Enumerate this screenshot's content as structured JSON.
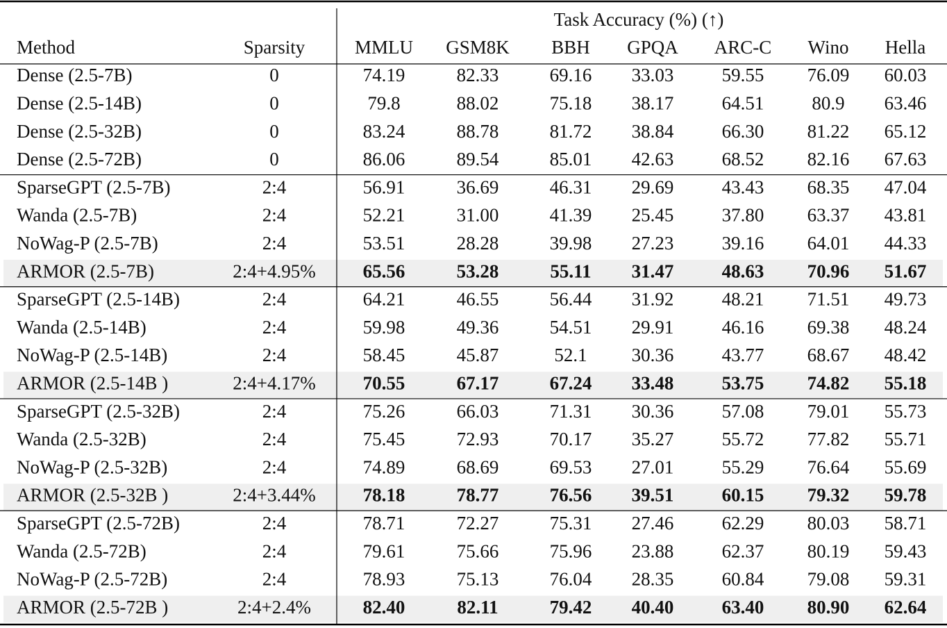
{
  "table": {
    "group_header": "Task Accuracy (%) (↑)",
    "columns": [
      "Method",
      "Sparsity",
      "MMLU",
      "GSM8K",
      "BBH",
      "GPQA",
      "ARC-C",
      "Wino",
      "Hella"
    ],
    "groups": [
      {
        "rows": [
          [
            "Dense (2.5-7B)",
            "0",
            "74.19",
            "82.33",
            "69.16",
            "33.03",
            "59.55",
            "76.09",
            "60.03"
          ],
          [
            "Dense (2.5-14B)",
            "0",
            "79.8",
            "88.02",
            "75.18",
            "38.17",
            "64.51",
            "80.9",
            "63.46"
          ],
          [
            "Dense (2.5-32B)",
            "0",
            "83.24",
            "88.78",
            "81.72",
            "38.84",
            "66.30",
            "81.22",
            "65.12"
          ],
          [
            "Dense (2.5-72B)",
            "0",
            "86.06",
            "89.54",
            "85.01",
            "42.63",
            "68.52",
            "82.16",
            "67.63"
          ]
        ]
      },
      {
        "rows": [
          [
            "SparseGPT (2.5-7B)",
            "2:4",
            "56.91",
            "36.69",
            "46.31",
            "29.69",
            "43.43",
            "68.35",
            "47.04"
          ],
          [
            "Wanda (2.5-7B)",
            "2:4",
            "52.21",
            "31.00",
            "41.39",
            "25.45",
            "37.80",
            "63.37",
            "43.81"
          ],
          [
            "NoWag-P (2.5-7B)",
            "2:4",
            "53.51",
            "28.28",
            "39.98",
            "27.23",
            "39.16",
            "64.01",
            "44.33"
          ],
          [
            "ARMOR (2.5-7B)",
            "2:4+4.95%",
            "65.56",
            "53.28",
            "55.11",
            "31.47",
            "48.63",
            "70.96",
            "51.67"
          ]
        ]
      },
      {
        "rows": [
          [
            "SparseGPT (2.5-14B)",
            "2:4",
            "64.21",
            "46.55",
            "56.44",
            "31.92",
            "48.21",
            "71.51",
            "49.73"
          ],
          [
            "Wanda (2.5-14B)",
            "2:4",
            "59.98",
            "49.36",
            "54.51",
            "29.91",
            "46.16",
            "69.38",
            "48.24"
          ],
          [
            "NoWag-P (2.5-14B)",
            "2:4",
            "58.45",
            "45.87",
            "52.1",
            "30.36",
            "43.77",
            "68.67",
            "48.42"
          ],
          [
            "ARMOR (2.5-14B )",
            "2:4+4.17%",
            "70.55",
            "67.17",
            "67.24",
            "33.48",
            "53.75",
            "74.82",
            "55.18"
          ]
        ]
      },
      {
        "rows": [
          [
            "SparseGPT (2.5-32B)",
            "2:4",
            "75.26",
            "66.03",
            "71.31",
            "30.36",
            "57.08",
            "79.01",
            "55.73"
          ],
          [
            "Wanda (2.5-32B)",
            "2:4",
            "75.45",
            "72.93",
            "70.17",
            "35.27",
            "55.72",
            "77.82",
            "55.71"
          ],
          [
            "NoWag-P (2.5-32B)",
            "2:4",
            "74.89",
            "68.69",
            "69.53",
            "27.01",
            "55.29",
            "76.64",
            "55.69"
          ],
          [
            "ARMOR (2.5-32B )",
            "2:4+3.44%",
            "78.18",
            "78.77",
            "76.56",
            "39.51",
            "60.15",
            "79.32",
            "59.78"
          ]
        ]
      },
      {
        "rows": [
          [
            "SparseGPT (2.5-72B)",
            "2:4",
            "78.71",
            "72.27",
            "75.31",
            "27.46",
            "62.29",
            "80.03",
            "58.71"
          ],
          [
            "Wanda (2.5-72B)",
            "2:4",
            "79.61",
            "75.66",
            "75.96",
            "23.88",
            "62.37",
            "80.19",
            "59.43"
          ],
          [
            "NoWag-P (2.5-72B)",
            "2:4",
            "78.93",
            "75.13",
            "76.04",
            "28.35",
            "60.84",
            "79.08",
            "59.31"
          ],
          [
            "ARMOR (2.5-72B )",
            "2:4+2.4%",
            "82.40",
            "82.11",
            "79.42",
            "40.40",
            "63.40",
            "80.90",
            "62.64"
          ]
        ]
      }
    ]
  }
}
